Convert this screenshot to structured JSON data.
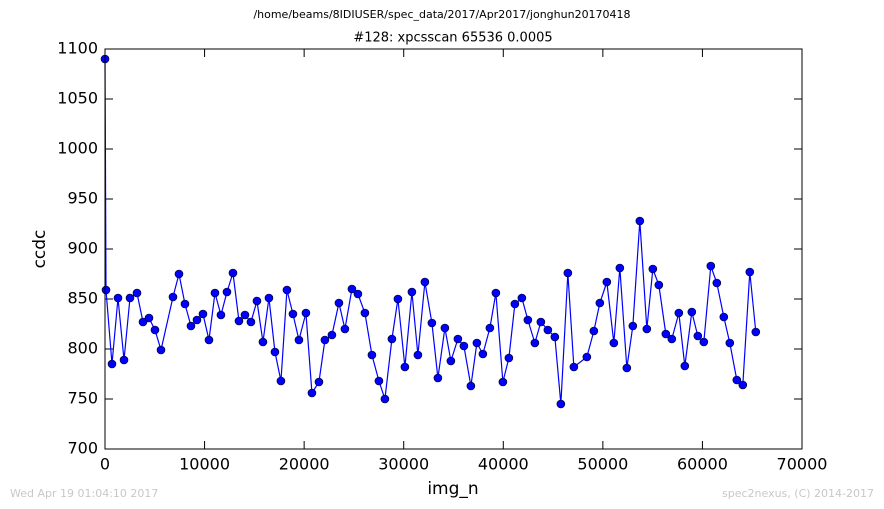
{
  "chart_data": {
    "type": "line",
    "suptitle": "/home/beams/8IDIUSER/spec_data/2017/Apr2017/jonghun20170418",
    "title": "#128: xpcsscan 65536 0.0005",
    "x_label": "img_n",
    "y_label": "ccdc",
    "footer_left": "Wed Apr 19 01:04:10 2017",
    "footer_right": "spec2nexus, (C) 2014-2017",
    "xlim": [
      0,
      70000
    ],
    "ylim": [
      700,
      1100
    ],
    "xticks": [
      0,
      10000,
      20000,
      30000,
      40000,
      50000,
      60000,
      70000
    ],
    "yticks": [
      700,
      750,
      800,
      850,
      900,
      950,
      1000,
      1050,
      1100
    ],
    "grid": false,
    "x": [
      0,
      100,
      703,
      1305,
      1908,
      2510,
      3213,
      3815,
      4418,
      5020,
      5623,
      6827,
      7430,
      8032,
      8634,
      9237,
      9839,
      10442,
      11044,
      11646,
      12249,
      12851,
      13454,
      14056,
      14658,
      15261,
      15863,
      16466,
      17068,
      17670,
      18273,
      18875,
      19478,
      20180,
      20783,
      21486,
      22088,
      22791,
      23494,
      24096,
      24799,
      25401,
      26104,
      26807,
      27510,
      28112,
      28815,
      29417,
      30120,
      30823,
      31425,
      32128,
      32831,
      33433,
      34136,
      34738,
      35441,
      36044,
      36746,
      37349,
      37951,
      38654,
      39256,
      39959,
      40562,
      41164,
      41867,
      42469,
      43172,
      43774,
      44477,
      45180,
      45782,
      46485,
      47088,
      48393,
      49096,
      49698,
      50401,
      51104,
      51706,
      52409,
      53011,
      53714,
      54417,
      55020,
      55622,
      56324,
      56927,
      57630,
      58232,
      58935,
      59537,
      60140,
      60842,
      61445,
      62148,
      62750,
      63455,
      64055,
      64758,
      65360
    ],
    "series": [
      {
        "name": "ccdc",
        "color": "#0000ff",
        "marker_edge": "#000000",
        "values": [
          1090,
          859,
          785,
          851,
          789,
          851,
          856,
          827,
          831,
          819,
          799,
          852,
          875,
          845,
          823,
          829,
          835,
          809,
          856,
          834,
          857,
          876,
          828,
          834,
          827,
          848,
          807,
          851,
          797,
          768,
          859,
          835,
          809,
          836,
          756,
          767,
          809,
          814,
          846,
          820,
          860,
          855,
          836,
          794,
          768,
          750,
          810,
          850,
          782,
          857,
          794,
          867,
          826,
          771,
          821,
          788,
          810,
          803,
          763,
          806,
          795,
          821,
          856,
          767,
          791,
          845,
          851,
          829,
          806,
          827,
          819,
          812,
          745,
          876,
          782,
          792,
          818,
          846,
          867,
          806,
          881,
          781,
          823,
          928,
          820,
          880,
          864,
          815,
          810,
          836,
          783,
          837,
          813,
          807,
          883,
          866,
          832,
          806,
          769,
          764,
          877,
          817
        ]
      }
    ]
  }
}
